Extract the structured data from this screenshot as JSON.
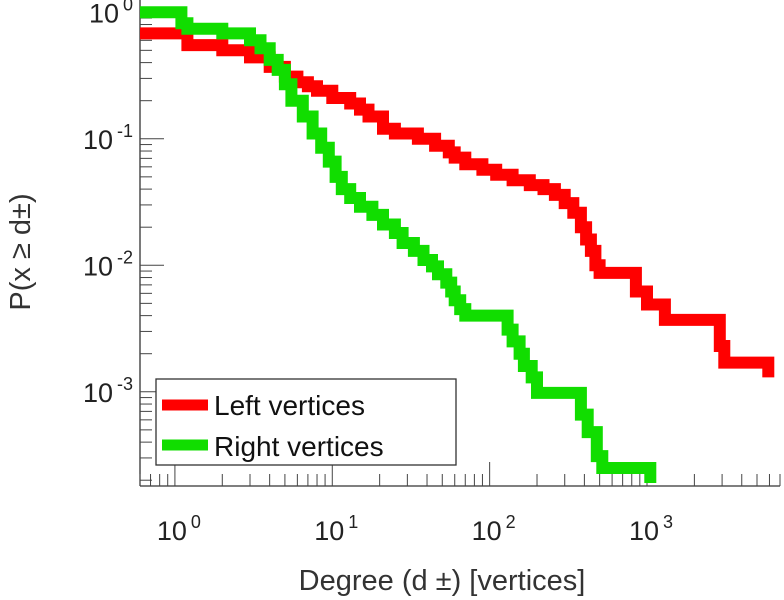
{
  "chart_data": {
    "type": "line",
    "title": "",
    "xlabel": "Degree (d  ±) [vertices]",
    "ylabel": "P(x ≥ d±)",
    "x_scale": "log",
    "y_scale": "log",
    "xlim": [
      0.6,
      7000
    ],
    "ylim": [
      0.00018,
      1.25
    ],
    "grid": false,
    "legend_position": "bottom-left",
    "x_ticks": [
      {
        "base": "10",
        "exp": "0"
      },
      {
        "base": "10",
        "exp": "1"
      },
      {
        "base": "10",
        "exp": "2"
      },
      {
        "base": "10",
        "exp": "3"
      }
    ],
    "y_ticks": [
      {
        "base": "10",
        "exp": "0"
      },
      {
        "base": "10",
        "exp": "-1"
      },
      {
        "base": "10",
        "exp": "-2"
      },
      {
        "base": "10",
        "exp": "-3"
      }
    ],
    "series": [
      {
        "name": "Left vertices",
        "color": "#ff0000",
        "points": [
          [
            0.6,
            0.68
          ],
          [
            1.2,
            0.68
          ],
          [
            1.2,
            0.55
          ],
          [
            2.0,
            0.55
          ],
          [
            2.0,
            0.5
          ],
          [
            3.0,
            0.5
          ],
          [
            3.0,
            0.44
          ],
          [
            4.0,
            0.44
          ],
          [
            4.0,
            0.37
          ],
          [
            5.0,
            0.37
          ],
          [
            5.0,
            0.31
          ],
          [
            6.0,
            0.31
          ],
          [
            6.0,
            0.28
          ],
          [
            7.0,
            0.28
          ],
          [
            7.0,
            0.26
          ],
          [
            8.0,
            0.26
          ],
          [
            8.0,
            0.24
          ],
          [
            10,
            0.24
          ],
          [
            10,
            0.21
          ],
          [
            13,
            0.21
          ],
          [
            13,
            0.19
          ],
          [
            15,
            0.19
          ],
          [
            15,
            0.17
          ],
          [
            17,
            0.17
          ],
          [
            17,
            0.15
          ],
          [
            21,
            0.15
          ],
          [
            21,
            0.12
          ],
          [
            25,
            0.12
          ],
          [
            25,
            0.11
          ],
          [
            35,
            0.11
          ],
          [
            35,
            0.1
          ],
          [
            45,
            0.1
          ],
          [
            45,
            0.088
          ],
          [
            55,
            0.088
          ],
          [
            55,
            0.078
          ],
          [
            60,
            0.078
          ],
          [
            60,
            0.071
          ],
          [
            70,
            0.071
          ],
          [
            70,
            0.063
          ],
          [
            90,
            0.063
          ],
          [
            90,
            0.057
          ],
          [
            110,
            0.057
          ],
          [
            110,
            0.052
          ],
          [
            140,
            0.052
          ],
          [
            140,
            0.047
          ],
          [
            180,
            0.047
          ],
          [
            180,
            0.043
          ],
          [
            220,
            0.043
          ],
          [
            220,
            0.04
          ],
          [
            260,
            0.04
          ],
          [
            260,
            0.036
          ],
          [
            300,
            0.036
          ],
          [
            300,
            0.031
          ],
          [
            340,
            0.031
          ],
          [
            340,
            0.026
          ],
          [
            380,
            0.026
          ],
          [
            380,
            0.02
          ],
          [
            410,
            0.02
          ],
          [
            410,
            0.016
          ],
          [
            440,
            0.016
          ],
          [
            440,
            0.013
          ],
          [
            470,
            0.013
          ],
          [
            470,
            0.01
          ],
          [
            500,
            0.01
          ],
          [
            500,
            0.0087
          ],
          [
            850,
            0.0087
          ],
          [
            850,
            0.0062
          ],
          [
            1000,
            0.0062
          ],
          [
            1000,
            0.0049
          ],
          [
            1300,
            0.0049
          ],
          [
            1300,
            0.0037
          ],
          [
            2900,
            0.0037
          ],
          [
            2900,
            0.0023
          ],
          [
            3100,
            0.0023
          ],
          [
            3100,
            0.0017
          ],
          [
            5900,
            0.0017
          ],
          [
            5900,
            0.0013
          ]
        ]
      },
      {
        "name": "Right vertices",
        "color": "#11dd00",
        "points": [
          [
            0.6,
            1.0
          ],
          [
            1.1,
            1.0
          ],
          [
            1.1,
            0.82
          ],
          [
            1.2,
            0.82
          ],
          [
            1.2,
            0.74
          ],
          [
            2.0,
            0.74
          ],
          [
            2.0,
            0.68
          ],
          [
            3.0,
            0.68
          ],
          [
            3.0,
            0.6
          ],
          [
            3.5,
            0.6
          ],
          [
            3.5,
            0.52
          ],
          [
            4.0,
            0.52
          ],
          [
            4.0,
            0.42
          ],
          [
            4.5,
            0.42
          ],
          [
            4.5,
            0.35
          ],
          [
            5.0,
            0.35
          ],
          [
            5.0,
            0.27
          ],
          [
            5.5,
            0.27
          ],
          [
            5.5,
            0.2
          ],
          [
            6.5,
            0.2
          ],
          [
            6.5,
            0.15
          ],
          [
            7.5,
            0.15
          ],
          [
            7.5,
            0.11
          ],
          [
            8.5,
            0.11
          ],
          [
            8.5,
            0.085
          ],
          [
            9.5,
            0.085
          ],
          [
            9.5,
            0.066
          ],
          [
            10.5,
            0.066
          ],
          [
            10.5,
            0.05
          ],
          [
            11.5,
            0.05
          ],
          [
            11.5,
            0.04
          ],
          [
            13,
            0.04
          ],
          [
            13,
            0.034
          ],
          [
            15,
            0.034
          ],
          [
            15,
            0.029
          ],
          [
            18,
            0.029
          ],
          [
            18,
            0.025
          ],
          [
            21,
            0.025
          ],
          [
            21,
            0.021
          ],
          [
            25,
            0.021
          ],
          [
            25,
            0.018
          ],
          [
            28,
            0.018
          ],
          [
            28,
            0.015
          ],
          [
            33,
            0.015
          ],
          [
            33,
            0.013
          ],
          [
            38,
            0.013
          ],
          [
            38,
            0.011
          ],
          [
            43,
            0.011
          ],
          [
            43,
            0.0098
          ],
          [
            47,
            0.0098
          ],
          [
            47,
            0.0085
          ],
          [
            53,
            0.0085
          ],
          [
            53,
            0.0073
          ],
          [
            57,
            0.0073
          ],
          [
            57,
            0.0062
          ],
          [
            60,
            0.0062
          ],
          [
            60,
            0.0053
          ],
          [
            65,
            0.0053
          ],
          [
            65,
            0.0045
          ],
          [
            70,
            0.0045
          ],
          [
            70,
            0.004
          ],
          [
            130,
            0.004
          ],
          [
            130,
            0.0031
          ],
          [
            140,
            0.0031
          ],
          [
            140,
            0.0025
          ],
          [
            155,
            0.0025
          ],
          [
            155,
            0.002
          ],
          [
            165,
            0.002
          ],
          [
            165,
            0.0016
          ],
          [
            185,
            0.0016
          ],
          [
            185,
            0.0013
          ],
          [
            200,
            0.0013
          ],
          [
            200,
            0.00098
          ],
          [
            380,
            0.00098
          ],
          [
            380,
            0.00066
          ],
          [
            420,
            0.00066
          ],
          [
            420,
            0.00048
          ],
          [
            480,
            0.00048
          ],
          [
            480,
            0.00031
          ],
          [
            520,
            0.00031
          ],
          [
            520,
            0.00025
          ],
          [
            1050,
            0.00025
          ],
          [
            1050,
            0.00019
          ]
        ]
      }
    ]
  }
}
